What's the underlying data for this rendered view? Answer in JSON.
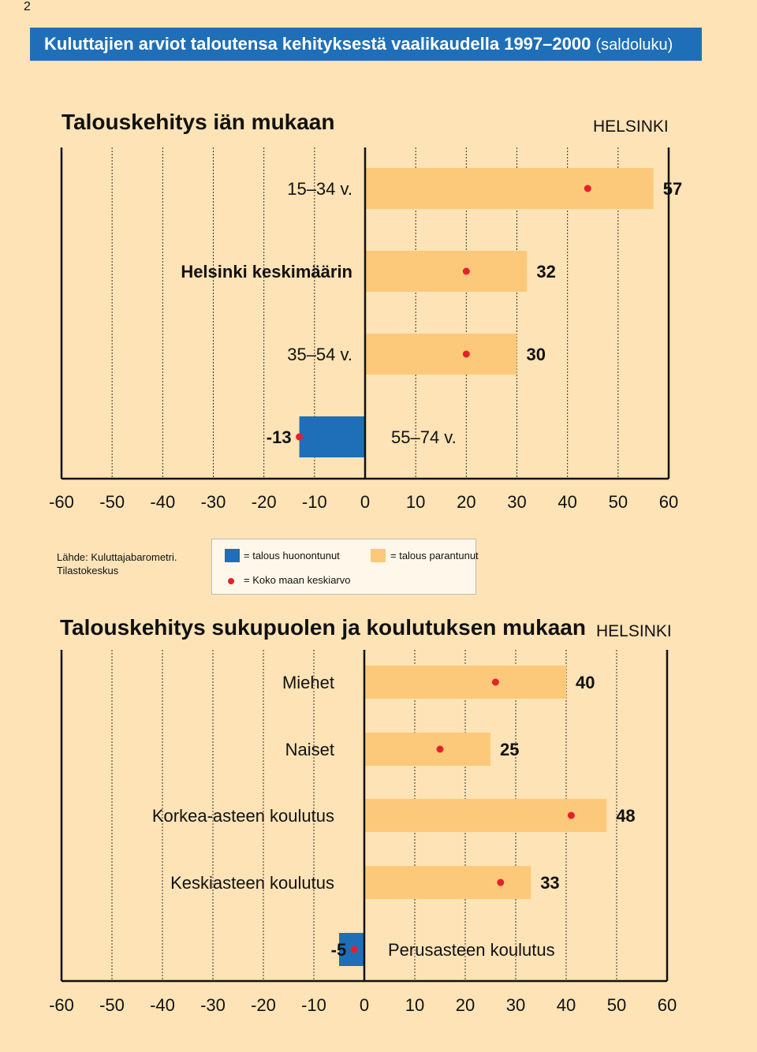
{
  "page_number": "2",
  "banner": {
    "title": "Kuluttajien arviot taloutensa kehityksestä vaalikaudella 1997–2000",
    "unit": "(saldoluku)"
  },
  "colors": {
    "negative": "#1f6fb8",
    "positive": "#fcc97a",
    "marker": "#e4202c",
    "background": "#fde3b6",
    "banner": "#1f6fb8"
  },
  "source": {
    "line1": "Lähde: Kuluttajabarometri.",
    "line2": "Tilastokeskus"
  },
  "legend": {
    "negative": "= talous huonontunut",
    "positive": "= talous parantunut",
    "marker": "= Koko maan keskiarvo"
  },
  "chart_data": [
    {
      "type": "bar",
      "orientation": "horizontal",
      "title": "Talouskehitys iän mukaan",
      "region": "HELSINKI",
      "xlim": [
        -60,
        60
      ],
      "xticks": [
        "-60",
        "-50",
        "-40",
        "-30",
        "-20",
        "-10",
        "0",
        "10",
        "20",
        "30",
        "40",
        "50",
        "60"
      ],
      "categories": [
        "15–34 v.",
        "Helsinki keskimäärin",
        "35–54 v.",
        "55–74 v."
      ],
      "values": [
        57,
        32,
        30,
        -13
      ],
      "labels": [
        "57",
        "32",
        "30",
        "-13"
      ],
      "marker_values": [
        44,
        20,
        20,
        -13
      ]
    },
    {
      "type": "bar",
      "orientation": "horizontal",
      "title": "Talouskehitys sukupuolen ja koulutuksen mukaan",
      "region": "HELSINKI",
      "xlim": [
        -60,
        60
      ],
      "xticks": [
        "-60",
        "-50",
        "-40",
        "-30",
        "-20",
        "-10",
        "0",
        "10",
        "20",
        "30",
        "40",
        "50",
        "60"
      ],
      "categories": [
        "Miehet",
        "Naiset",
        "Korkea-asteen koulutus",
        "Keskiasteen koulutus",
        "Perusasteen koulutus"
      ],
      "values": [
        40,
        25,
        48,
        33,
        -5
      ],
      "labels": [
        "40",
        "25",
        "48",
        "33",
        "-5"
      ],
      "marker_values": [
        26,
        15,
        41,
        27,
        -2
      ]
    }
  ]
}
